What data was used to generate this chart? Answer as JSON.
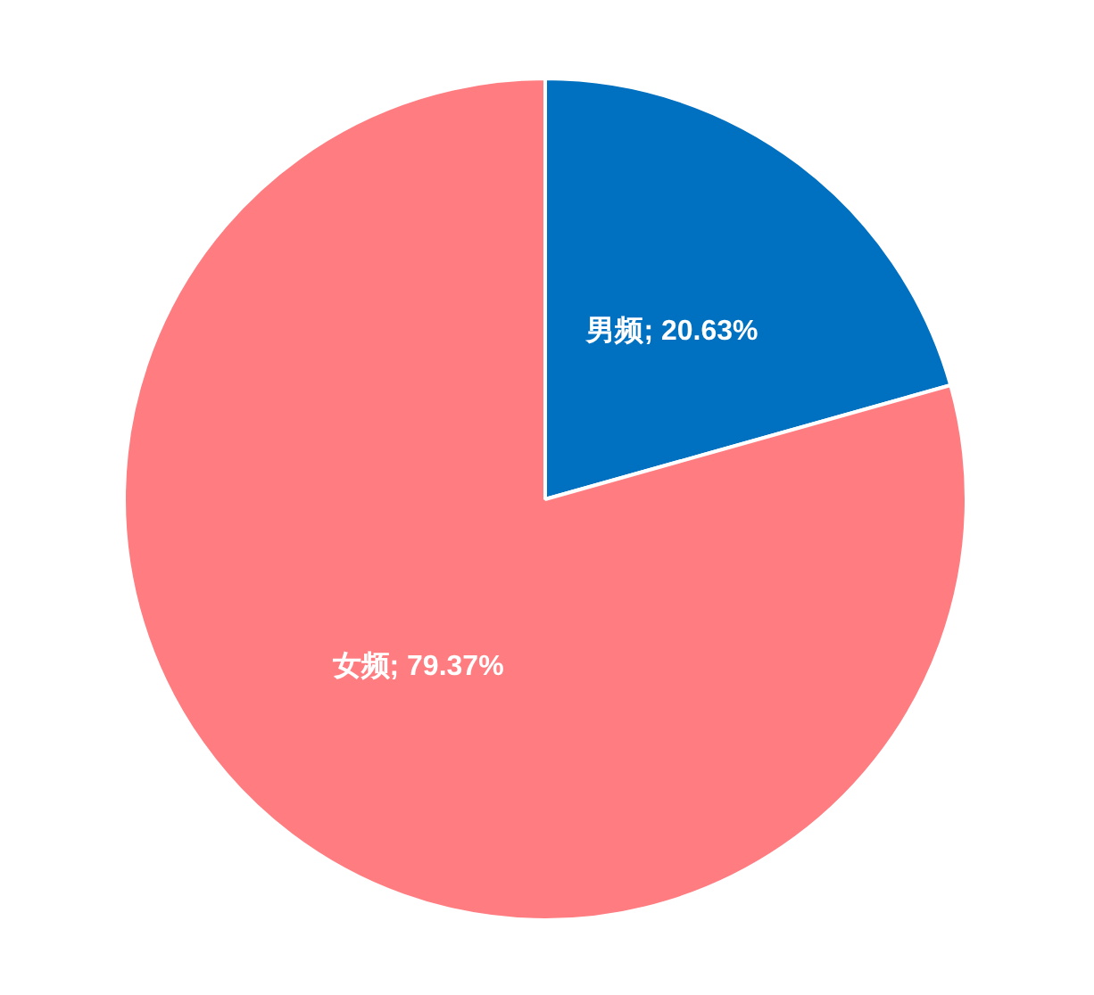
{
  "chart_data": {
    "type": "pie",
    "categories": [
      "男频",
      "女频"
    ],
    "values": [
      20.63,
      79.37
    ],
    "colors": [
      "#0070c0",
      "#ff7c80"
    ],
    "value_labels": [
      "20.63%",
      "79.37%"
    ],
    "legend": false
  }
}
